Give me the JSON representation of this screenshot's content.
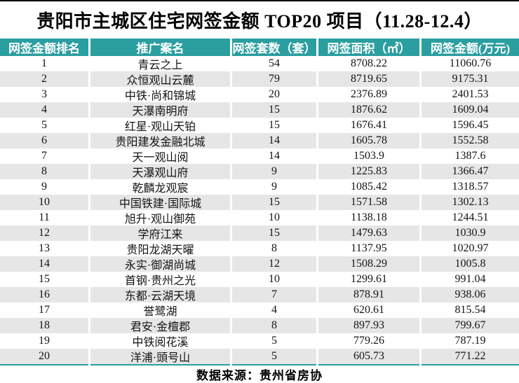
{
  "title": "贵阳市主城区住宅网签金额 TOP20 项目（11.28-12.4）",
  "footer": "数据来源：贵州省房协",
  "colors": {
    "header_bg": "#2B9EA0",
    "row_alt_bg": "#E6E6E6",
    "accent_line": "#2B9EA0",
    "top_border": "#000000"
  },
  "table": {
    "columns": [
      "网签金额排名",
      "推广案名",
      "网签套数（套）",
      "网签面积（㎡）",
      "网签金额(万元)"
    ],
    "rows": [
      [
        "1",
        "青云之上",
        "54",
        "8708.22",
        "11060.76"
      ],
      [
        "2",
        "众恒观山云麓",
        "79",
        "8719.65",
        "9175.31"
      ],
      [
        "3",
        "中铁·尚和锦城",
        "20",
        "2376.89",
        "2401.53"
      ],
      [
        "4",
        "天瀑南明府",
        "15",
        "1876.62",
        "1609.04"
      ],
      [
        "5",
        "红星·观山天铂",
        "15",
        "1676.41",
        "1596.45"
      ],
      [
        "6",
        "贵阳建发金融北城",
        "14",
        "1605.78",
        "1552.58"
      ],
      [
        "7",
        "天一观山阅",
        "14",
        "1503.9",
        "1387.6"
      ],
      [
        "8",
        "天瀑观山府",
        "9",
        "1225.83",
        "1366.47"
      ],
      [
        "9",
        "乾麟龙观宸",
        "9",
        "1085.42",
        "1318.57"
      ],
      [
        "10",
        "中国铁建·国际城",
        "15",
        "1571.58",
        "1302.13"
      ],
      [
        "11",
        "旭升·观山御苑",
        "10",
        "1138.18",
        "1244.51"
      ],
      [
        "12",
        "学府江来",
        "15",
        "1479.63",
        "1030.9"
      ],
      [
        "13",
        "贵阳龙湖天曜",
        "8",
        "1137.95",
        "1020.97"
      ],
      [
        "14",
        "永实·御湖尚城",
        "12",
        "1508.29",
        "1005.8"
      ],
      [
        "15",
        "首钢·贵州之光",
        "10",
        "1299.61",
        "991.04"
      ],
      [
        "16",
        "东都·云湖天境",
        "7",
        "878.91",
        "938.06"
      ],
      [
        "17",
        "誉鹭湖",
        "4",
        "620.61",
        "815.54"
      ],
      [
        "18",
        "君安·金檀郡",
        "8",
        "897.93",
        "799.67"
      ],
      [
        "19",
        "中铁阅花溪",
        "5",
        "779.26",
        "787.19"
      ],
      [
        "20",
        "洋浦·頭号山",
        "5",
        "605.73",
        "771.22"
      ]
    ]
  },
  "chart_data": {
    "type": "table",
    "title": "贵阳市主城区住宅网签金额 TOP20 项目（11.28-12.4）",
    "source": "数据来源：贵州省房协",
    "columns": [
      "网签金额排名",
      "推广案名",
      "网签套数（套）",
      "网签面积（㎡）",
      "网签金额(万元)"
    ],
    "rows": [
      [
        1,
        "青云之上",
        54,
        8708.22,
        11060.76
      ],
      [
        2,
        "众恒观山云麓",
        79,
        8719.65,
        9175.31
      ],
      [
        3,
        "中铁·尚和锦城",
        20,
        2376.89,
        2401.53
      ],
      [
        4,
        "天瀑南明府",
        15,
        1876.62,
        1609.04
      ],
      [
        5,
        "红星·观山天铂",
        15,
        1676.41,
        1596.45
      ],
      [
        6,
        "贵阳建发金融北城",
        14,
        1605.78,
        1552.58
      ],
      [
        7,
        "天一观山阅",
        14,
        1503.9,
        1387.6
      ],
      [
        8,
        "天瀑观山府",
        9,
        1225.83,
        1366.47
      ],
      [
        9,
        "乾麟龙观宸",
        9,
        1085.42,
        1318.57
      ],
      [
        10,
        "中国铁建·国际城",
        15,
        1571.58,
        1302.13
      ],
      [
        11,
        "旭升·观山御苑",
        10,
        1138.18,
        1244.51
      ],
      [
        12,
        "学府江来",
        15,
        1479.63,
        1030.9
      ],
      [
        13,
        "贵阳龙湖天曜",
        8,
        1137.95,
        1020.97
      ],
      [
        14,
        "永实·御湖尚城",
        12,
        1508.29,
        1005.8
      ],
      [
        15,
        "首钢·贵州之光",
        10,
        1299.61,
        991.04
      ],
      [
        16,
        "东都·云湖天境",
        7,
        878.91,
        938.06
      ],
      [
        17,
        "誉鹭湖",
        4,
        620.61,
        815.54
      ],
      [
        18,
        "君安·金檀郡",
        8,
        897.93,
        799.67
      ],
      [
        19,
        "中铁阅花溪",
        5,
        779.26,
        787.19
      ],
      [
        20,
        "洋浦·頭号山",
        5,
        605.73,
        771.22
      ]
    ]
  }
}
